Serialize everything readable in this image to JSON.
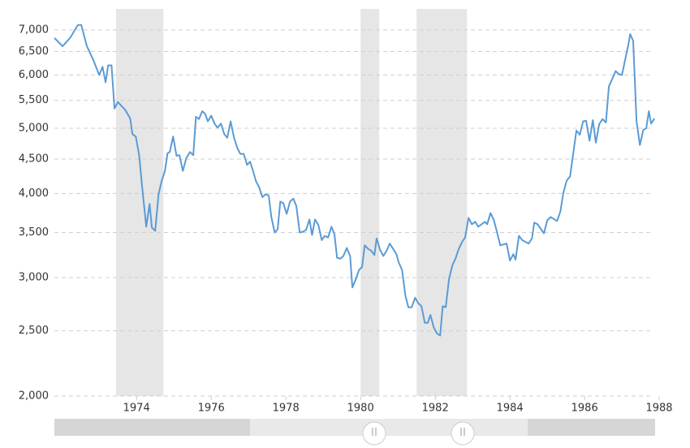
{
  "chart_data": {
    "type": "line",
    "log_scale": true,
    "grid": true,
    "color": "#5b9bd5",
    "recessions": [
      [
        1973.45,
        1974.72
      ],
      [
        1980.0,
        1980.5
      ],
      [
        1981.5,
        1982.85
      ]
    ],
    "xlim": [
      1971.8,
      1987.9
    ],
    "xticks": [
      1974,
      1976,
      1978,
      1980,
      1982,
      1984,
      1986,
      1988
    ],
    "ylim": [
      2000,
      7500
    ],
    "yticks": [
      {
        "value": 2000,
        "label": "2,000"
      },
      {
        "value": 2500,
        "label": "2,500"
      },
      {
        "value": 3000,
        "label": "3,000"
      },
      {
        "value": 3500,
        "label": "3,500"
      },
      {
        "value": 4000,
        "label": "4,000"
      },
      {
        "value": 4500,
        "label": "4,500"
      },
      {
        "value": 5000,
        "label": "5,000"
      },
      {
        "value": 5500,
        "label": "5,500"
      },
      {
        "value": 6000,
        "label": "6,000"
      },
      {
        "value": 6500,
        "label": "6,500"
      },
      {
        "value": 7000,
        "label": "7,000"
      }
    ],
    "x": [
      1971.8,
      1972.02,
      1972.22,
      1972.43,
      1972.52,
      1972.67,
      1972.83,
      1973.0,
      1973.09,
      1973.17,
      1973.24,
      1973.33,
      1973.41,
      1973.5,
      1973.7,
      1973.83,
      1973.89,
      1973.98,
      1974.07,
      1974.15,
      1974.26,
      1974.35,
      1974.41,
      1974.5,
      1974.59,
      1974.67,
      1974.76,
      1974.83,
      1974.89,
      1974.98,
      1975.07,
      1975.15,
      1975.24,
      1975.33,
      1975.43,
      1975.52,
      1975.59,
      1975.67,
      1975.76,
      1975.83,
      1975.91,
      1976.0,
      1976.09,
      1976.17,
      1976.26,
      1976.35,
      1976.43,
      1976.52,
      1976.61,
      1976.7,
      1976.78,
      1976.87,
      1976.96,
      1977.04,
      1977.11,
      1977.2,
      1977.28,
      1977.37,
      1977.46,
      1977.54,
      1977.61,
      1977.7,
      1977.78,
      1977.85,
      1977.93,
      1978.02,
      1978.11,
      1978.2,
      1978.28,
      1978.37,
      1978.46,
      1978.54,
      1978.63,
      1978.7,
      1978.78,
      1978.87,
      1978.96,
      1979.04,
      1979.13,
      1979.22,
      1979.3,
      1979.37,
      1979.46,
      1979.54,
      1979.63,
      1979.72,
      1979.78,
      1979.87,
      1979.96,
      1980.04,
      1980.11,
      1980.2,
      1980.28,
      1980.37,
      1980.43,
      1980.52,
      1980.61,
      1980.7,
      1980.78,
      1980.87,
      1980.96,
      1981.02,
      1981.11,
      1981.2,
      1981.28,
      1981.37,
      1981.46,
      1981.54,
      1981.63,
      1981.72,
      1981.8,
      1981.87,
      1981.96,
      1982.04,
      1982.13,
      1982.2,
      1982.28,
      1982.37,
      1982.46,
      1982.54,
      1982.63,
      1982.72,
      1982.8,
      1982.89,
      1982.98,
      1983.07,
      1983.15,
      1983.33,
      1983.39,
      1983.48,
      1983.57,
      1983.65,
      1983.74,
      1983.91,
      1984.0,
      1984.09,
      1984.15,
      1984.24,
      1984.33,
      1984.5,
      1984.59,
      1984.65,
      1984.74,
      1984.91,
      1985.0,
      1985.09,
      1985.26,
      1985.35,
      1985.43,
      1985.52,
      1985.61,
      1985.7,
      1985.78,
      1985.87,
      1985.96,
      1986.04,
      1986.13,
      1986.22,
      1986.3,
      1986.39,
      1986.48,
      1986.57,
      1986.65,
      1986.74,
      1986.83,
      1986.91,
      1987.0,
      1987.09,
      1987.17,
      1987.22,
      1987.3,
      1987.39,
      1987.48,
      1987.57,
      1987.65,
      1987.72,
      1987.78,
      1987.87
    ],
    "values": [
      6810,
      6620,
      6810,
      7120,
      7120,
      6620,
      6340,
      6000,
      6170,
      5850,
      6200,
      6200,
      5350,
      5470,
      5320,
      5170,
      4900,
      4860,
      4560,
      4090,
      3570,
      3860,
      3560,
      3520,
      3990,
      4170,
      4320,
      4590,
      4610,
      4860,
      4550,
      4560,
      4320,
      4510,
      4610,
      4560,
      5200,
      5160,
      5300,
      5260,
      5120,
      5220,
      5080,
      5010,
      5080,
      4900,
      4840,
      5120,
      4840,
      4670,
      4580,
      4580,
      4410,
      4460,
      4340,
      4170,
      4090,
      3950,
      3990,
      3970,
      3690,
      3500,
      3540,
      3890,
      3870,
      3730,
      3890,
      3930,
      3830,
      3500,
      3510,
      3530,
      3660,
      3470,
      3660,
      3590,
      3410,
      3460,
      3440,
      3570,
      3480,
      3210,
      3200,
      3230,
      3320,
      3230,
      2900,
      2980,
      3080,
      3110,
      3350,
      3310,
      3290,
      3240,
      3430,
      3300,
      3230,
      3290,
      3370,
      3310,
      3250,
      3160,
      3080,
      2820,
      2710,
      2710,
      2800,
      2750,
      2720,
      2570,
      2570,
      2640,
      2530,
      2480,
      2460,
      2720,
      2710,
      2990,
      3130,
      3200,
      3310,
      3390,
      3440,
      3680,
      3600,
      3630,
      3570,
      3630,
      3600,
      3740,
      3650,
      3510,
      3350,
      3370,
      3180,
      3250,
      3190,
      3460,
      3410,
      3370,
      3430,
      3620,
      3600,
      3490,
      3650,
      3690,
      3640,
      3760,
      4010,
      4180,
      4240,
      4610,
      4960,
      4890,
      5120,
      5130,
      4790,
      5140,
      4760,
      5070,
      5160,
      5100,
      5770,
      5920,
      6080,
      6020,
      6000,
      6340,
      6650,
      6900,
      6740,
      5120,
      4720,
      4970,
      5000,
      5300,
      5080,
      5170
    ]
  }
}
